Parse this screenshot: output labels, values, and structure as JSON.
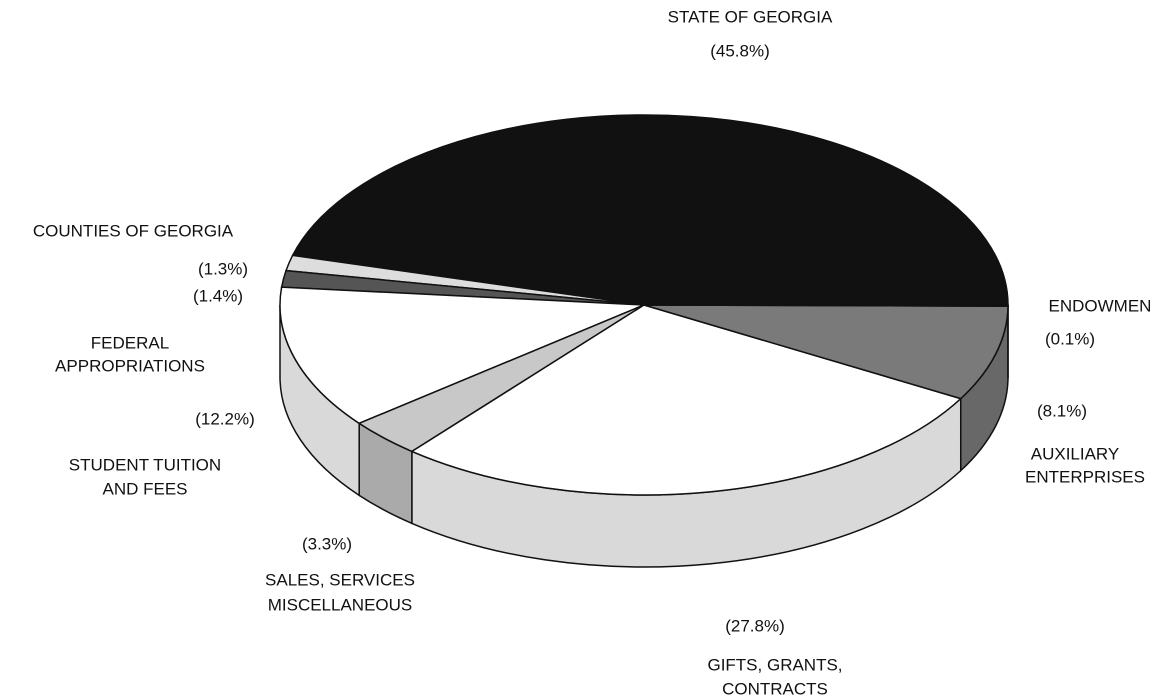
{
  "chart_data": {
    "type": "pie",
    "categories": [
      [
        "STATE OF GEORGIA"
      ],
      [
        "COUNTIES OF GEORGIA"
      ],
      [
        "FEDERAL",
        "APPROPRIATIONS"
      ],
      [
        "STUDENT TUITION",
        "AND FEES"
      ],
      [
        "SALES, SERVICES",
        "MISCELLANEOUS"
      ],
      [
        "GIFTS, GRANTS,",
        "CONTRACTS"
      ],
      [
        "AUXILIARY",
        "ENTERPRISES"
      ],
      [
        "ENDOWMEN"
      ]
    ],
    "values": [
      45.8,
      1.3,
      1.4,
      12.2,
      3.3,
      27.8,
      8.1,
      0.1
    ],
    "value_labels": [
      "(45.8%)",
      "(1.3%)",
      "(1.4%)",
      "(12.2%)",
      "(3.3%)",
      "(27.8%)",
      "(8.1%)",
      "(0.1%)"
    ],
    "colors": [
      "#111111",
      "#dddddd",
      "#555555",
      "#ffffff",
      "#c8c8c8",
      "#ffffff",
      "#7a7a7a",
      "#444444"
    ]
  }
}
